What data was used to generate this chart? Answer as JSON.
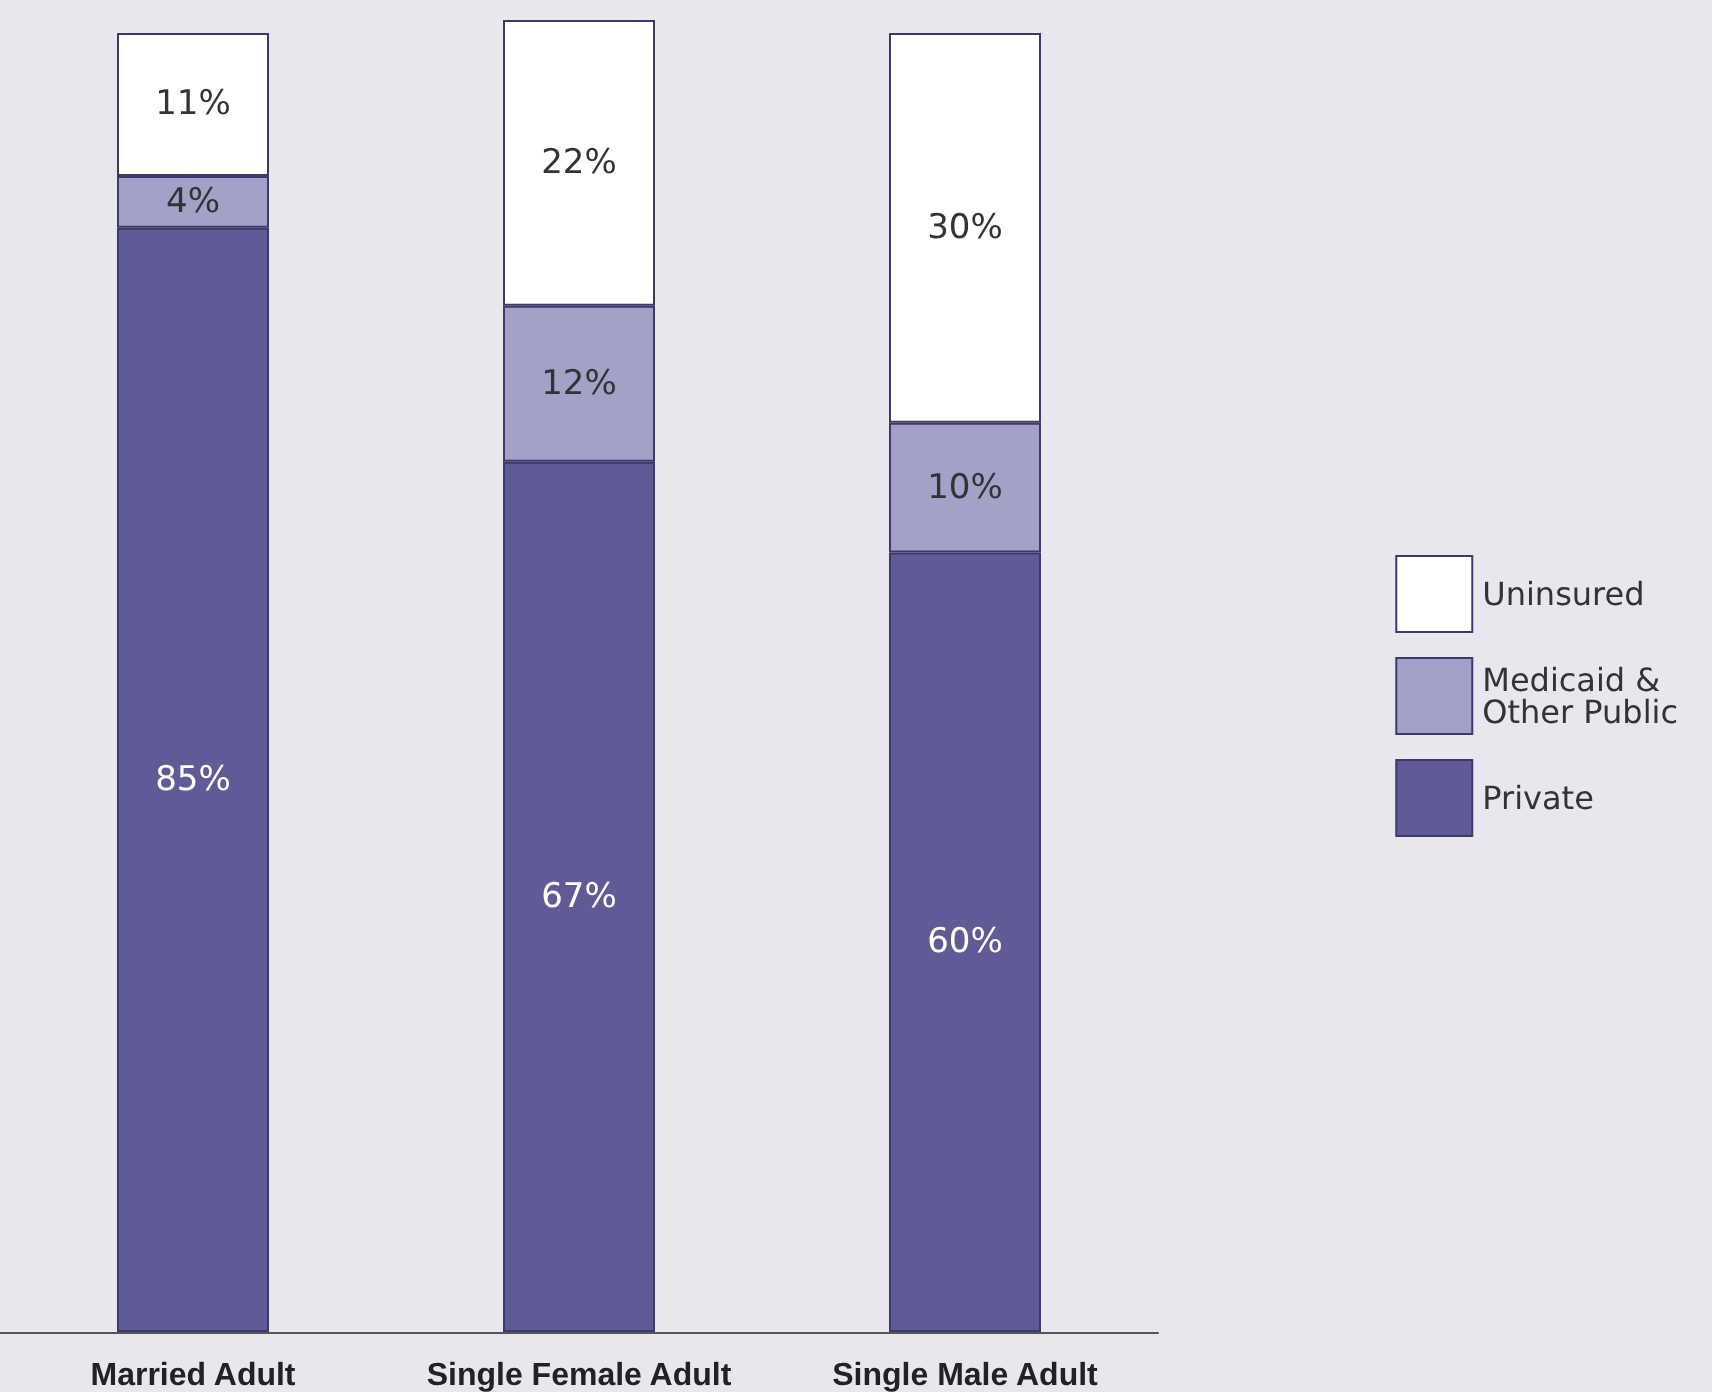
{
  "chart_data": {
    "type": "bar",
    "stacked": true,
    "legend": "right",
    "categories": [
      "Married Adult",
      "Single Female Adult",
      "Single Male Adult"
    ],
    "series": [
      {
        "name": "Private",
        "color": "#5f5b96",
        "values": [
          85,
          67,
          60
        ],
        "value_labels": [
          "85%",
          "67%",
          "60%"
        ]
      },
      {
        "name": "Medicaid & Other Public",
        "color": "#a4a1c9",
        "values": [
          4,
          12,
          10
        ],
        "value_labels": [
          "4%",
          "12%",
          "10%"
        ]
      },
      {
        "name": "Uninsured",
        "color": "#ffffff",
        "values": [
          11,
          22,
          30
        ],
        "value_labels": [
          "11%",
          "22%",
          "30%"
        ]
      }
    ]
  }
}
